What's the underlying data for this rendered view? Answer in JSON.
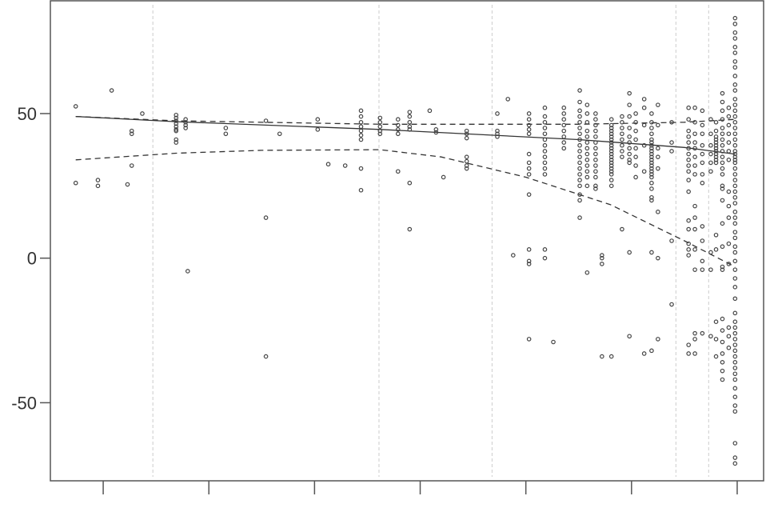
{
  "chart_data": {
    "type": "scatter",
    "title": "",
    "xlabel": "",
    "ylabel": "",
    "xlim": [
      0.5,
      7.25
    ],
    "ylim": [
      -77,
      89
    ],
    "x_ticks": [
      1,
      2,
      3,
      4,
      5,
      6,
      7
    ],
    "x_tick_labels": [
      "",
      "",
      "",
      "",
      "",
      "",
      ""
    ],
    "y_ticks": [
      50,
      0,
      -50
    ],
    "y_tick_labels": [
      "50",
      "0",
      "-50"
    ],
    "grid": false,
    "vertical_reference_lines": [
      1.47,
      3.61,
      4.68,
      6.42,
      6.73
    ],
    "colors": {
      "points": "#444444",
      "lines": "#333333",
      "reference_lines": "#cccccc",
      "axis": "#555555"
    },
    "point_columns": [
      {
        "x": 0.74,
        "y": [
          52.5,
          26
        ]
      },
      {
        "x": 0.95,
        "y": [
          27,
          25
        ]
      },
      {
        "x": 1.08,
        "y": [
          58
        ]
      },
      {
        "x": 1.23,
        "y": [
          25.5
        ]
      },
      {
        "x": 1.27,
        "y": [
          44,
          43,
          32
        ]
      },
      {
        "x": 1.37,
        "y": [
          50
        ]
      },
      {
        "x": 1.69,
        "y": [
          49.5,
          48.5,
          47.5,
          46.5,
          45.5,
          44.5,
          44,
          41,
          40
        ]
      },
      {
        "x": 1.78,
        "y": [
          48,
          47,
          46,
          45
        ]
      },
      {
        "x": 1.8,
        "y": [
          -4.5
        ]
      },
      {
        "x": 2.16,
        "y": [
          45,
          43
        ]
      },
      {
        "x": 2.54,
        "y": [
          47.5,
          14,
          -34
        ]
      },
      {
        "x": 2.67,
        "y": [
          43
        ]
      },
      {
        "x": 3.03,
        "y": [
          48,
          44.5
        ]
      },
      {
        "x": 3.13,
        "y": [
          32.5
        ]
      },
      {
        "x": 3.29,
        "y": [
          32
        ]
      },
      {
        "x": 3.44,
        "y": [
          51,
          49,
          47,
          45.5,
          44,
          42.5,
          41,
          31,
          23.5
        ]
      },
      {
        "x": 3.62,
        "y": [
          48.5,
          47,
          45.5,
          44,
          43
        ]
      },
      {
        "x": 3.79,
        "y": [
          48,
          46,
          44.5,
          43,
          30
        ]
      },
      {
        "x": 3.9,
        "y": [
          50.5,
          49,
          47,
          45.5,
          44.5,
          26,
          10
        ]
      },
      {
        "x": 4.09,
        "y": [
          51
        ]
      },
      {
        "x": 4.15,
        "y": [
          44.5,
          43.5
        ]
      },
      {
        "x": 4.22,
        "y": [
          28
        ]
      },
      {
        "x": 4.44,
        "y": [
          44,
          43,
          41.5,
          35,
          33.5,
          32,
          31
        ]
      },
      {
        "x": 4.73,
        "y": [
          50,
          44,
          43,
          42
        ]
      },
      {
        "x": 4.83,
        "y": [
          55
        ]
      },
      {
        "x": 4.88,
        "y": [
          1
        ]
      },
      {
        "x": 5.03,
        "y": [
          50,
          48,
          46,
          44.5,
          43,
          36,
          33,
          31,
          29,
          22,
          3,
          -1,
          -2,
          -28
        ]
      },
      {
        "x": 5.18,
        "y": [
          52,
          49,
          47,
          45,
          43,
          41,
          39,
          37,
          35,
          33,
          31,
          29,
          3,
          0
        ]
      },
      {
        "x": 5.26,
        "y": [
          -29
        ]
      },
      {
        "x": 5.36,
        "y": [
          52,
          50,
          48,
          46,
          44,
          42,
          40,
          38
        ]
      },
      {
        "x": 5.51,
        "y": [
          58,
          54,
          51,
          49,
          47,
          45,
          43,
          41,
          39,
          37,
          35,
          33,
          31,
          29,
          27,
          25,
          22,
          20,
          14
        ]
      },
      {
        "x": 5.58,
        "y": [
          53,
          50,
          47,
          44,
          42,
          40,
          38,
          36,
          34,
          32,
          30,
          28,
          25,
          -5
        ]
      },
      {
        "x": 5.66,
        "y": [
          50,
          48,
          46,
          44,
          42,
          40,
          38,
          36,
          34,
          32,
          30,
          28,
          25,
          24
        ]
      },
      {
        "x": 5.72,
        "y": [
          1,
          0,
          -2,
          -34
        ]
      },
      {
        "x": 5.81,
        "y": [
          48,
          46,
          45,
          44,
          43,
          42,
          41,
          40,
          39,
          38,
          37,
          36,
          35,
          34,
          33,
          32,
          31,
          30,
          29,
          27,
          25,
          -34
        ]
      },
      {
        "x": 5.91,
        "y": [
          49,
          47,
          45,
          43,
          41,
          39,
          37,
          35,
          10
        ]
      },
      {
        "x": 5.98,
        "y": [
          57,
          53,
          49,
          45,
          42,
          40,
          38,
          36,
          34,
          33,
          2,
          -27
        ]
      },
      {
        "x": 6.04,
        "y": [
          50,
          47,
          44,
          41,
          38,
          35,
          32,
          28
        ]
      },
      {
        "x": 6.12,
        "y": [
          55,
          52,
          46,
          39,
          30,
          -33
        ]
      },
      {
        "x": 6.19,
        "y": [
          50,
          47,
          45,
          43,
          41,
          40,
          39,
          38,
          37,
          36,
          35,
          34,
          33,
          32,
          31,
          30,
          29,
          28,
          26,
          24,
          21,
          20,
          2,
          -32
        ]
      },
      {
        "x": 6.25,
        "y": [
          53,
          46,
          38,
          35,
          31,
          16,
          0,
          -28
        ]
      },
      {
        "x": 6.38,
        "y": [
          47,
          40,
          37,
          6,
          -16
        ]
      },
      {
        "x": 6.54,
        "y": [
          52,
          48,
          44,
          42,
          40,
          38,
          36,
          34,
          32,
          30,
          27,
          23,
          13,
          10,
          5,
          3,
          1,
          -30,
          -33
        ]
      },
      {
        "x": 6.6,
        "y": [
          52,
          47,
          43,
          40,
          38,
          35,
          32,
          29,
          18,
          14,
          10,
          3,
          -4,
          -26,
          -28,
          -33
        ]
      },
      {
        "x": 6.67,
        "y": [
          51,
          46,
          43,
          39,
          36,
          33,
          29,
          26,
          11,
          6,
          -1,
          -4,
          -26
        ]
      },
      {
        "x": 6.75,
        "y": [
          48,
          43,
          39,
          36,
          33,
          30,
          2,
          -4,
          -27
        ]
      },
      {
        "x": 6.8,
        "y": [
          47,
          44,
          42,
          41,
          40,
          39,
          38,
          37,
          36,
          35,
          34,
          33,
          8,
          3,
          -22,
          -28,
          -34
        ]
      },
      {
        "x": 6.86,
        "y": [
          57,
          54,
          51,
          48,
          45,
          43,
          41,
          39,
          37,
          35,
          33,
          31,
          29,
          25,
          24,
          20,
          12,
          4,
          -3,
          -4,
          -21,
          -25,
          -29,
          -33,
          -36,
          -39,
          -42
        ]
      },
      {
        "x": 6.92,
        "y": [
          52,
          49,
          46,
          43,
          40,
          37,
          34,
          23,
          18,
          14,
          5,
          -2,
          -24,
          -27,
          -31
        ]
      },
      {
        "x": 6.98,
        "y": [
          83,
          81,
          78,
          76,
          73,
          71,
          68,
          66,
          63,
          60,
          58,
          55,
          53,
          51,
          49,
          47,
          45,
          43,
          41,
          39,
          37,
          36,
          35,
          34,
          33,
          31,
          29,
          27,
          25,
          23,
          21,
          19,
          16,
          14,
          12,
          9,
          7,
          4,
          2,
          -1,
          -4,
          -7,
          -10,
          -14,
          -19,
          -22,
          -24,
          -26,
          -28,
          -30,
          -32,
          -34,
          -36,
          -38,
          -40,
          -42,
          -45,
          -48,
          -51,
          -53,
          -64,
          -69,
          -71
        ]
      }
    ],
    "lines": [
      {
        "style": "solid",
        "x": [
          0.74,
          1.69,
          3.62,
          5.5,
          6.5,
          6.98
        ],
        "y": [
          49,
          47.2,
          44.5,
          41,
          38.3,
          36
        ]
      },
      {
        "style": "dashed",
        "x": [
          0.74,
          1.69,
          3.62,
          5.5,
          6.5,
          6.98
        ],
        "y": [
          49,
          47.5,
          46.3,
          46.3,
          47,
          48
        ]
      },
      {
        "style": "dashed",
        "x": [
          0.74,
          1.69,
          2.5,
          3.62,
          4.2,
          5.0,
          5.8,
          6.5,
          6.98
        ],
        "y": [
          34,
          36.3,
          37.3,
          37.5,
          35,
          28,
          18.5,
          6,
          -3
        ]
      }
    ]
  }
}
